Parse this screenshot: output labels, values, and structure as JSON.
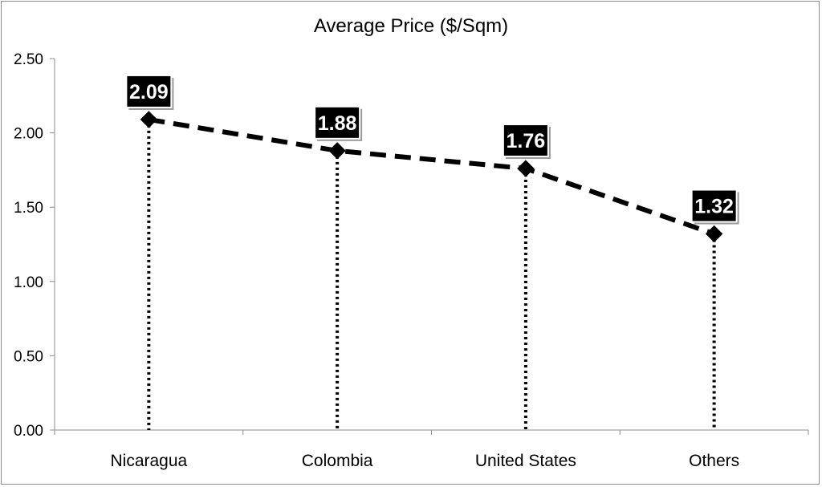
{
  "chart_data": {
    "type": "line",
    "title": "Average Price ($/Sqm)",
    "categories": [
      "Nicaragua",
      "Colombia",
      "United States",
      "Others"
    ],
    "values": [
      2.09,
      1.88,
      1.76,
      1.32
    ],
    "data_labels": [
      "2.09",
      "1.88",
      "1.76",
      "1.32"
    ],
    "ylim": [
      0,
      2.5
    ],
    "yticks": [
      "0.00",
      "0.50",
      "1.00",
      "1.50",
      "2.00",
      "2.50"
    ],
    "ytick_values": [
      0,
      0.5,
      1.0,
      1.5,
      2.0,
      2.5
    ],
    "grid": false,
    "legend": "none",
    "line_color": "#000000",
    "line_style": "dashed",
    "drop_lines": "dotted",
    "marker": "diamond"
  }
}
